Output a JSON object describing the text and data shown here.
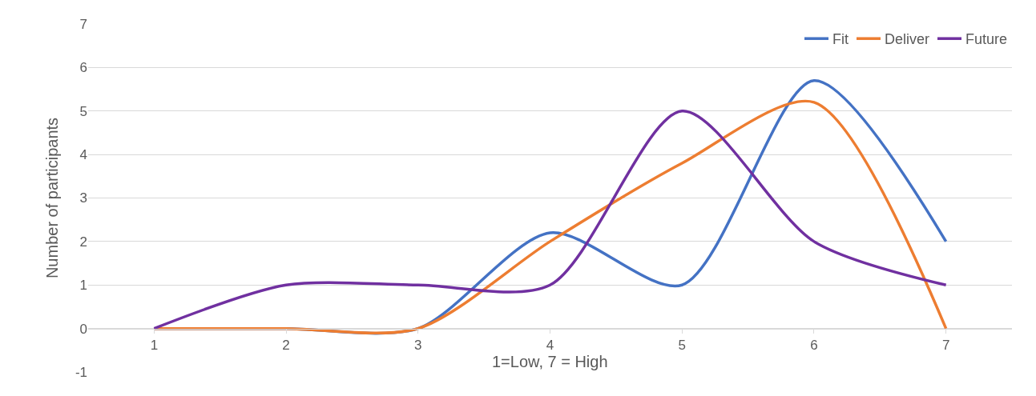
{
  "chart_data": {
    "type": "line",
    "xlabel": "1=Low, 7 = High",
    "ylabel": "Number of participants",
    "categories": [
      "1",
      "2",
      "3",
      "4",
      "5",
      "6",
      "7"
    ],
    "series": [
      {
        "name": "Fit",
        "color": "#4472c4",
        "values": [
          0,
          0,
          0,
          2.2,
          1,
          5.7,
          2
        ]
      },
      {
        "name": "Deliver",
        "color": "#ed7d31",
        "values": [
          0,
          0,
          0,
          2,
          3.8,
          5.2,
          0
        ]
      },
      {
        "name": "Future",
        "color": "#7030a0",
        "values": [
          0,
          1,
          1,
          1,
          5,
          2,
          1
        ]
      }
    ],
    "ylim": [
      -1,
      7
    ],
    "yticks": [
      -1,
      0,
      1,
      2,
      3,
      4,
      5,
      6,
      7
    ],
    "grid": "y",
    "legend": "top right",
    "marker": "none",
    "line_style": "solid"
  }
}
